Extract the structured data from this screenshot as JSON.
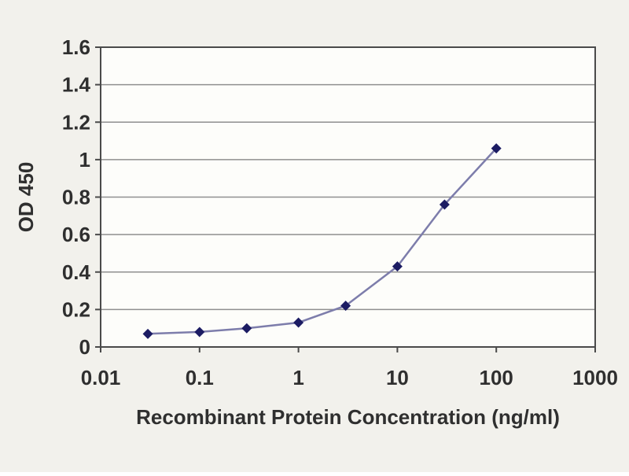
{
  "chart_data": {
    "type": "line",
    "title": "",
    "xlabel": "Recombinant Protein Concentration (ng/ml)",
    "ylabel": "OD 450",
    "x_scale": "log",
    "x": [
      0.03,
      0.1,
      0.3,
      1,
      3,
      10,
      30,
      100
    ],
    "series": [
      {
        "name": "OD 450",
        "values": [
          0.07,
          0.08,
          0.1,
          0.13,
          0.22,
          0.43,
          0.76,
          1.06
        ]
      }
    ],
    "xlim": [
      0.01,
      1000
    ],
    "ylim": [
      0,
      1.6
    ],
    "x_ticks": [
      0.01,
      0.1,
      1,
      10,
      100,
      1000
    ],
    "x_tick_labels": [
      "0.01",
      "0.1",
      "1",
      "10",
      "100",
      "1000"
    ],
    "y_ticks": [
      0,
      0.2,
      0.4,
      0.6,
      0.8,
      1,
      1.2,
      1.4,
      1.6
    ],
    "y_tick_labels": [
      "0",
      "0.2",
      "0.4",
      "0.6",
      "0.8",
      "1",
      "1.2",
      "1.4",
      "1.6"
    ],
    "grid": "horizontal-major",
    "legend": "none",
    "marker": "diamond",
    "colors": {
      "line": "#7d7dab",
      "marker": "#1c1c63",
      "grid": "#8f8f8f",
      "axis": "#4a4a4a",
      "text": "#2f2f2f",
      "plot_bg": "#fdfdfa",
      "page_bg": "#f2f1ec"
    }
  }
}
